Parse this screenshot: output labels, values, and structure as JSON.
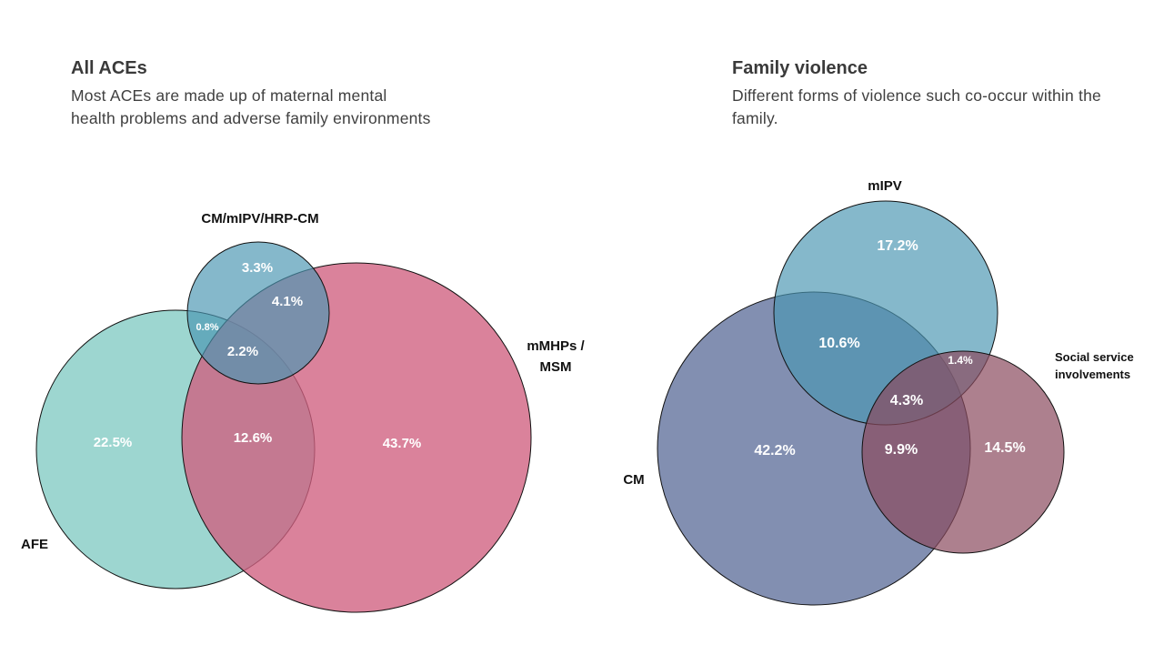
{
  "panels": {
    "left": {
      "title": "All ACEs",
      "subtitle": "Most ACEs are made up of maternal mental health problems and adverse family environments",
      "sets": {
        "cm_group": "CM/mIPV/HRP-CM",
        "mmhps_line1": "mMHPs /",
        "mmhps_line2": "MSM",
        "afe": "AFE"
      },
      "regions": {
        "cm_only": "3.3%",
        "cm_mmhp": "4.1%",
        "cm_afe": "0.8%",
        "all_three": "2.2%",
        "afe_only": "22.5%",
        "afe_mmhp": "12.6%",
        "mmhp_only": "43.7%"
      }
    },
    "right": {
      "title": "Family violence",
      "subtitle": "Different forms of violence such co-occur within the family.",
      "sets": {
        "mipv": "mIPV",
        "social_line1": "Social service",
        "social_line2": "involvements",
        "cm": "CM"
      },
      "regions": {
        "mipv_only": "17.2%",
        "cm_mipv": "10.6%",
        "mipv_social": "1.4%",
        "all_three": "4.3%",
        "cm_only": "42.2%",
        "cm_social": "9.9%",
        "social_only": "14.5%"
      }
    }
  },
  "colors": {
    "teal": "#99d5cf",
    "pink": "#d77f96",
    "blue": "#6aa9bf",
    "navy": "#566896",
    "mauve": "#9a6170"
  }
}
